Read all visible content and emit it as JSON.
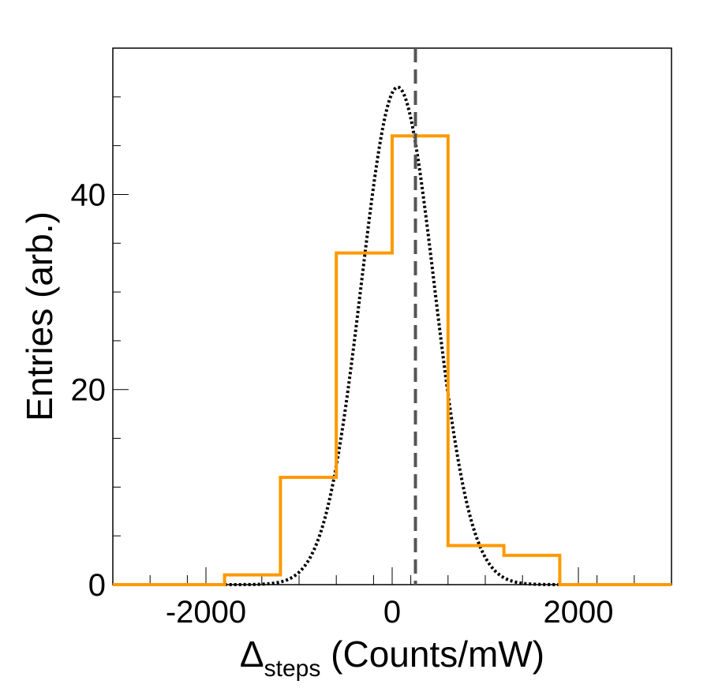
{
  "chart_data": {
    "type": "histogram",
    "title": "",
    "xlabel": {
      "main": "Δ",
      "sub": "steps",
      "rest": " (Counts/mW)"
    },
    "ylabel": "Entries (arb.)",
    "xlim": [
      -3000,
      3000
    ],
    "ylim": [
      0,
      55
    ],
    "x_ticks": [
      -2000,
      0,
      2000
    ],
    "x_tick_labels": [
      "-2000",
      "0",
      "2000"
    ],
    "y_ticks": [
      0,
      20,
      40
    ],
    "y_tick_labels": [
      "0",
      "20",
      "40"
    ],
    "series": [
      {
        "kind": "histogram",
        "color": "#ff9900",
        "bin_edges": [
          -3000,
          -2400,
          -1800,
          -1200,
          -600,
          0,
          600,
          1200,
          1800,
          2400,
          3000
        ],
        "counts": [
          0,
          0,
          1,
          11,
          34,
          46,
          4,
          3,
          0,
          0
        ]
      },
      {
        "kind": "gaussian-fit",
        "color": "#000000",
        "style": "dotted",
        "amplitude": 51,
        "mean": 60,
        "sigma": 390
      }
    ],
    "reference_line": {
      "x": 250,
      "color": "#555555",
      "style": "dashed"
    }
  }
}
